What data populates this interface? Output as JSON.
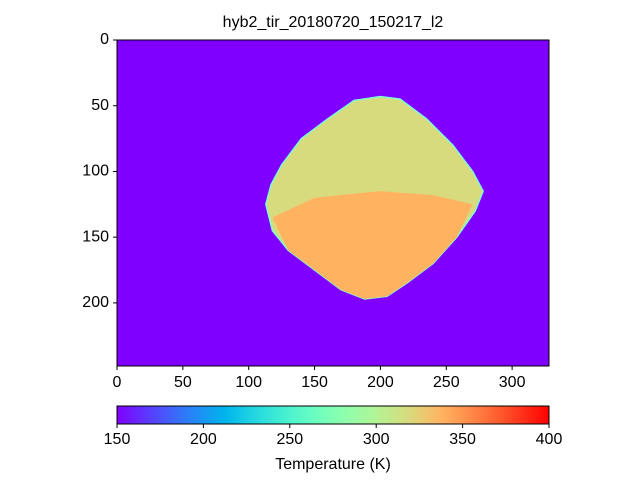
{
  "chart_data": {
    "type": "image",
    "title": "hyb2_tir_20180720_150217_l2",
    "xlim": [
      0,
      328
    ],
    "ylim": [
      248,
      0
    ],
    "xticks": [
      0,
      50,
      100,
      150,
      200,
      250,
      300
    ],
    "yticks": [
      0,
      50,
      100,
      150,
      200
    ],
    "colormap": "rainbow",
    "background_value": 150,
    "regions": [
      {
        "x": [
          160,
          180,
          200,
          215,
          235,
          255,
          270,
          278,
          272,
          258,
          240,
          220,
          205,
          188,
          170,
          150,
          130,
          118,
          113,
          117,
          125,
          140
        ],
        "y": [
          60,
          46,
          43,
          45,
          60,
          80,
          100,
          115,
          130,
          150,
          170,
          185,
          195,
          197,
          190,
          175,
          160,
          145,
          125,
          110,
          95,
          75
        ],
        "value": 318
      },
      {
        "x": [
          118,
          150,
          200,
          240,
          270,
          258,
          240,
          220,
          205,
          188,
          170,
          150,
          130
        ],
        "y": [
          135,
          120,
          115,
          118,
          125,
          150,
          170,
          185,
          195,
          197,
          190,
          175,
          160
        ],
        "value": 338
      }
    ],
    "colorbar": {
      "label": "Temperature (K)",
      "clim": [
        150,
        400
      ],
      "ticks": [
        150,
        200,
        250,
        300,
        350,
        400
      ]
    }
  }
}
